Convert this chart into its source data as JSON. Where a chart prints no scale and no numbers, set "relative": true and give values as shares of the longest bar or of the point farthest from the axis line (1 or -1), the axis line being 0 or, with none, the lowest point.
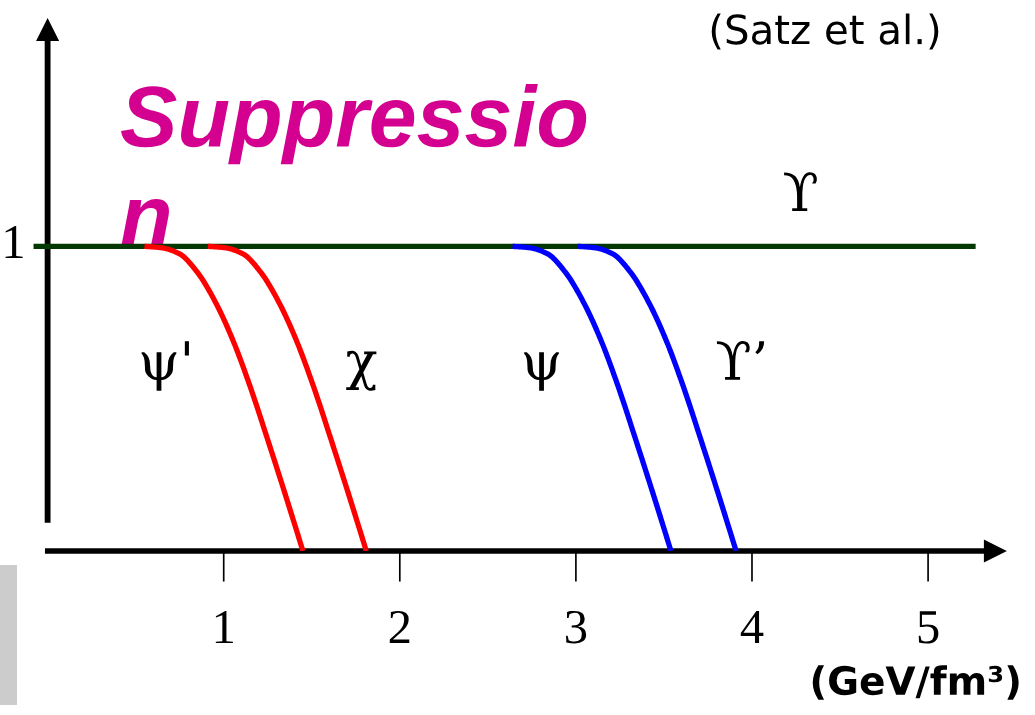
{
  "chart_data": {
    "type": "line",
    "title": "Suppressio\nn",
    "xlabel": "(GeV/fm³)",
    "relative": true,
    "xlim": [
      -0.1,
      5.38
    ],
    "xticks": [
      1,
      2,
      3,
      4,
      5
    ],
    "annotations": [
      {
        "text": "1",
        "x": 0,
        "y": 1
      },
      "(Satz et al.)"
    ],
    "series": [
      {
        "name": "ϒ",
        "color": "#033803",
        "x": [
          -0.08,
          5.27
        ],
        "values": [
          1,
          1
        ]
      },
      {
        "name": "ψ'",
        "color": "#ff0000",
        "x": [
          0.55,
          0.65,
          0.75,
          0.85,
          0.95,
          1.05,
          1.15,
          1.25,
          1.35,
          1.45
        ],
        "values": [
          1.0,
          0.995,
          0.975,
          0.915,
          0.82,
          0.695,
          0.54,
          0.365,
          0.185,
          0
        ]
      },
      {
        "name": "χ",
        "color": "#ff0000",
        "x": [
          0.91,
          1.01,
          1.11,
          1.21,
          1.31,
          1.41,
          1.51,
          1.61,
          1.71,
          1.81
        ],
        "values": [
          1.0,
          0.995,
          0.975,
          0.915,
          0.82,
          0.695,
          0.54,
          0.365,
          0.185,
          0
        ]
      },
      {
        "name": "ψ",
        "color": "#0000ff",
        "x": [
          2.64,
          2.74,
          2.84,
          2.94,
          3.04,
          3.14,
          3.24,
          3.34,
          3.44,
          3.54
        ],
        "values": [
          1.0,
          0.995,
          0.975,
          0.915,
          0.82,
          0.695,
          0.54,
          0.365,
          0.185,
          0
        ]
      },
      {
        "name": "ϒ’",
        "color": "#0000ff",
        "x": [
          3.01,
          3.11,
          3.21,
          3.31,
          3.41,
          3.51,
          3.61,
          3.71,
          3.81,
          3.91
        ],
        "values": [
          1.0,
          0.995,
          0.975,
          0.915,
          0.82,
          0.695,
          0.54,
          0.365,
          0.185,
          0
        ]
      }
    ]
  }
}
